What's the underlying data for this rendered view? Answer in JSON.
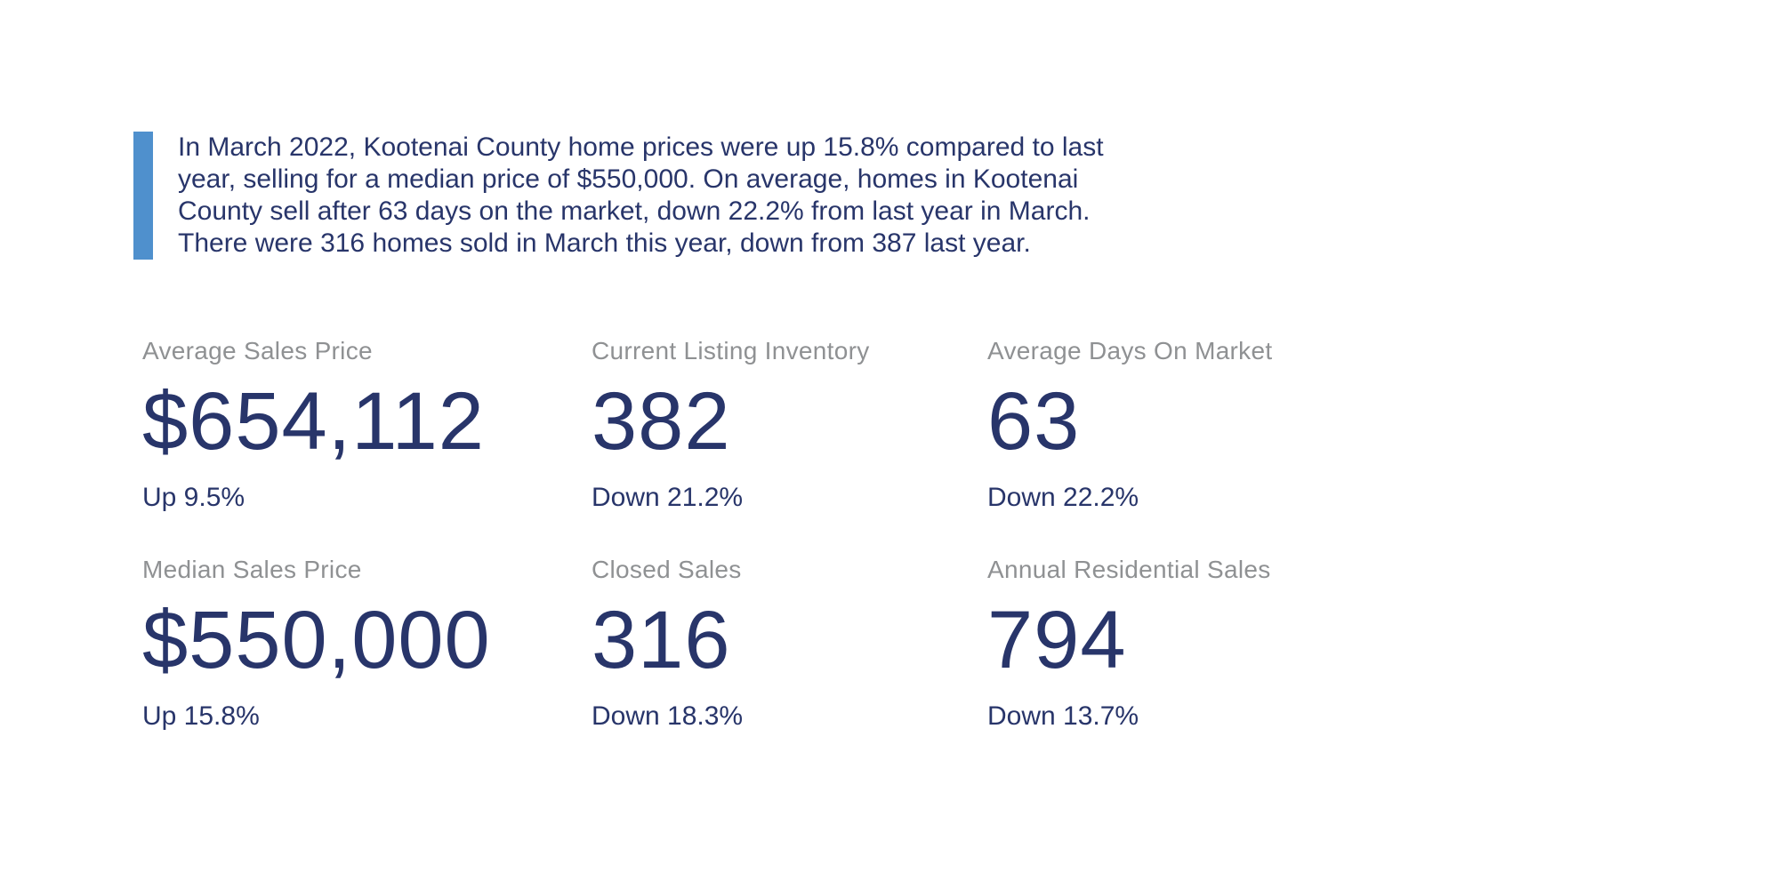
{
  "colors": {
    "navy": "#28356a",
    "blue_bar": "#4f90cd",
    "label_gray": "#8f9193",
    "background": "#ffffff"
  },
  "summary": {
    "text": "In March 2022, Kootenai County home prices were up 15.8% compared to last year, selling for a median price of $550,000. On average, homes in Kootenai County sell after 63 days on the market, down 22.2% from last year in March. There were 316 homes sold in March this year, down from 387 last year.",
    "lines": [
      "In March 2022, Kootenai County home prices were up 15.8% compared to last",
      "year, selling for a median price of $550,000. On average, homes in Kootenai",
      "County sell after 63 days on the market, down 22.2% from last year in March.",
      "There were 316 homes sold in March this year, down from 387 last year."
    ]
  },
  "stats": [
    {
      "label": "Average Sales Price",
      "value": "$654,112",
      "change": "Up 9.5%"
    },
    {
      "label": "Current Listing Inventory",
      "value": "382",
      "change": "Down 21.2%"
    },
    {
      "label": "Average Days On Market",
      "value": "63",
      "change": "Down 22.2%"
    },
    {
      "label": "Median Sales Price",
      "value": "$550,000",
      "change": "Up 15.8%"
    },
    {
      "label": "Closed Sales",
      "value": "316",
      "change": "Down 18.3%"
    },
    {
      "label": "Annual Residential Sales",
      "value": "794",
      "change": "Down 13.7%"
    }
  ]
}
